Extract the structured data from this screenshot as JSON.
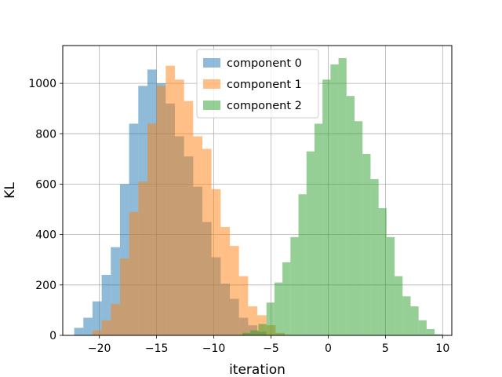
{
  "chart_data": {
    "type": "bar",
    "subtype": "histogram",
    "xlabel": "iteration",
    "ylabel": "KL",
    "xlim": [
      -23.2,
      10.8
    ],
    "ylim": [
      0,
      1150
    ],
    "xticks": [
      -20,
      -15,
      -10,
      -5,
      0,
      5,
      10
    ],
    "yticks": [
      0,
      200,
      400,
      600,
      800,
      1000
    ],
    "grid": true,
    "legend": "top-center",
    "series": [
      {
        "name": "component 0",
        "color": "#1f77b4",
        "alpha": 0.5,
        "bins": [
          [
            -22.2,
            -21.4,
            30
          ],
          [
            -21.4,
            -20.6,
            70
          ],
          [
            -20.6,
            -19.8,
            135
          ],
          [
            -19.8,
            -19.0,
            240
          ],
          [
            -19.0,
            -18.2,
            350
          ],
          [
            -18.2,
            -17.4,
            600
          ],
          [
            -17.4,
            -16.6,
            840
          ],
          [
            -16.6,
            -15.8,
            990
          ],
          [
            -15.8,
            -15.0,
            1055
          ],
          [
            -15.0,
            -14.2,
            1000
          ],
          [
            -14.2,
            -13.4,
            920
          ],
          [
            -13.4,
            -12.6,
            790
          ],
          [
            -12.6,
            -11.8,
            710
          ],
          [
            -11.8,
            -11.0,
            590
          ],
          [
            -11.0,
            -10.2,
            450
          ],
          [
            -10.2,
            -9.4,
            310
          ],
          [
            -9.4,
            -8.6,
            205
          ],
          [
            -8.6,
            -7.8,
            145
          ],
          [
            -7.8,
            -7.0,
            70
          ],
          [
            -7.0,
            -6.2,
            40
          ],
          [
            -6.2,
            -5.4,
            15
          ]
        ]
      },
      {
        "name": "component 1",
        "color": "#ff7f0e",
        "alpha": 0.5,
        "bins": [
          [
            -20.6,
            -19.8,
            20
          ],
          [
            -19.8,
            -19.0,
            60
          ],
          [
            -19.0,
            -18.2,
            125
          ],
          [
            -18.2,
            -17.4,
            305
          ],
          [
            -17.4,
            -16.6,
            490
          ],
          [
            -16.6,
            -15.8,
            610
          ],
          [
            -15.8,
            -15.0,
            840
          ],
          [
            -15.0,
            -14.2,
            990
          ],
          [
            -14.2,
            -13.4,
            1070
          ],
          [
            -13.4,
            -12.6,
            1015
          ],
          [
            -12.6,
            -11.8,
            930
          ],
          [
            -11.8,
            -11.0,
            790
          ],
          [
            -11.0,
            -10.2,
            740
          ],
          [
            -10.2,
            -9.4,
            580
          ],
          [
            -9.4,
            -8.6,
            430
          ],
          [
            -8.6,
            -7.8,
            355
          ],
          [
            -7.8,
            -7.0,
            235
          ],
          [
            -7.0,
            -6.2,
            115
          ],
          [
            -6.2,
            -5.4,
            80
          ],
          [
            -5.4,
            -4.6,
            40
          ],
          [
            -4.6,
            -3.8,
            10
          ]
        ]
      },
      {
        "name": "component 2",
        "color": "#2ca02c",
        "alpha": 0.5,
        "bins": [
          [
            -7.5,
            -6.8,
            10
          ],
          [
            -6.8,
            -6.1,
            20
          ],
          [
            -6.1,
            -5.4,
            45
          ],
          [
            -5.4,
            -4.7,
            130
          ],
          [
            -4.7,
            -4.0,
            210
          ],
          [
            -4.0,
            -3.3,
            290
          ],
          [
            -3.3,
            -2.6,
            390
          ],
          [
            -2.6,
            -1.9,
            560
          ],
          [
            -1.9,
            -1.2,
            730
          ],
          [
            -1.2,
            -0.5,
            840
          ],
          [
            -0.5,
            0.2,
            1015
          ],
          [
            0.2,
            0.9,
            1075
          ],
          [
            0.9,
            1.6,
            1100
          ],
          [
            1.6,
            2.3,
            950
          ],
          [
            2.3,
            3.0,
            850
          ],
          [
            3.0,
            3.7,
            720
          ],
          [
            3.7,
            4.4,
            620
          ],
          [
            4.4,
            5.1,
            505
          ],
          [
            5.1,
            5.8,
            390
          ],
          [
            5.8,
            6.5,
            235
          ],
          [
            6.5,
            7.2,
            155
          ],
          [
            7.2,
            7.9,
            115
          ],
          [
            7.9,
            8.6,
            60
          ],
          [
            8.6,
            9.3,
            25
          ],
          [
            9.3,
            10.0,
            5
          ]
        ]
      }
    ]
  }
}
